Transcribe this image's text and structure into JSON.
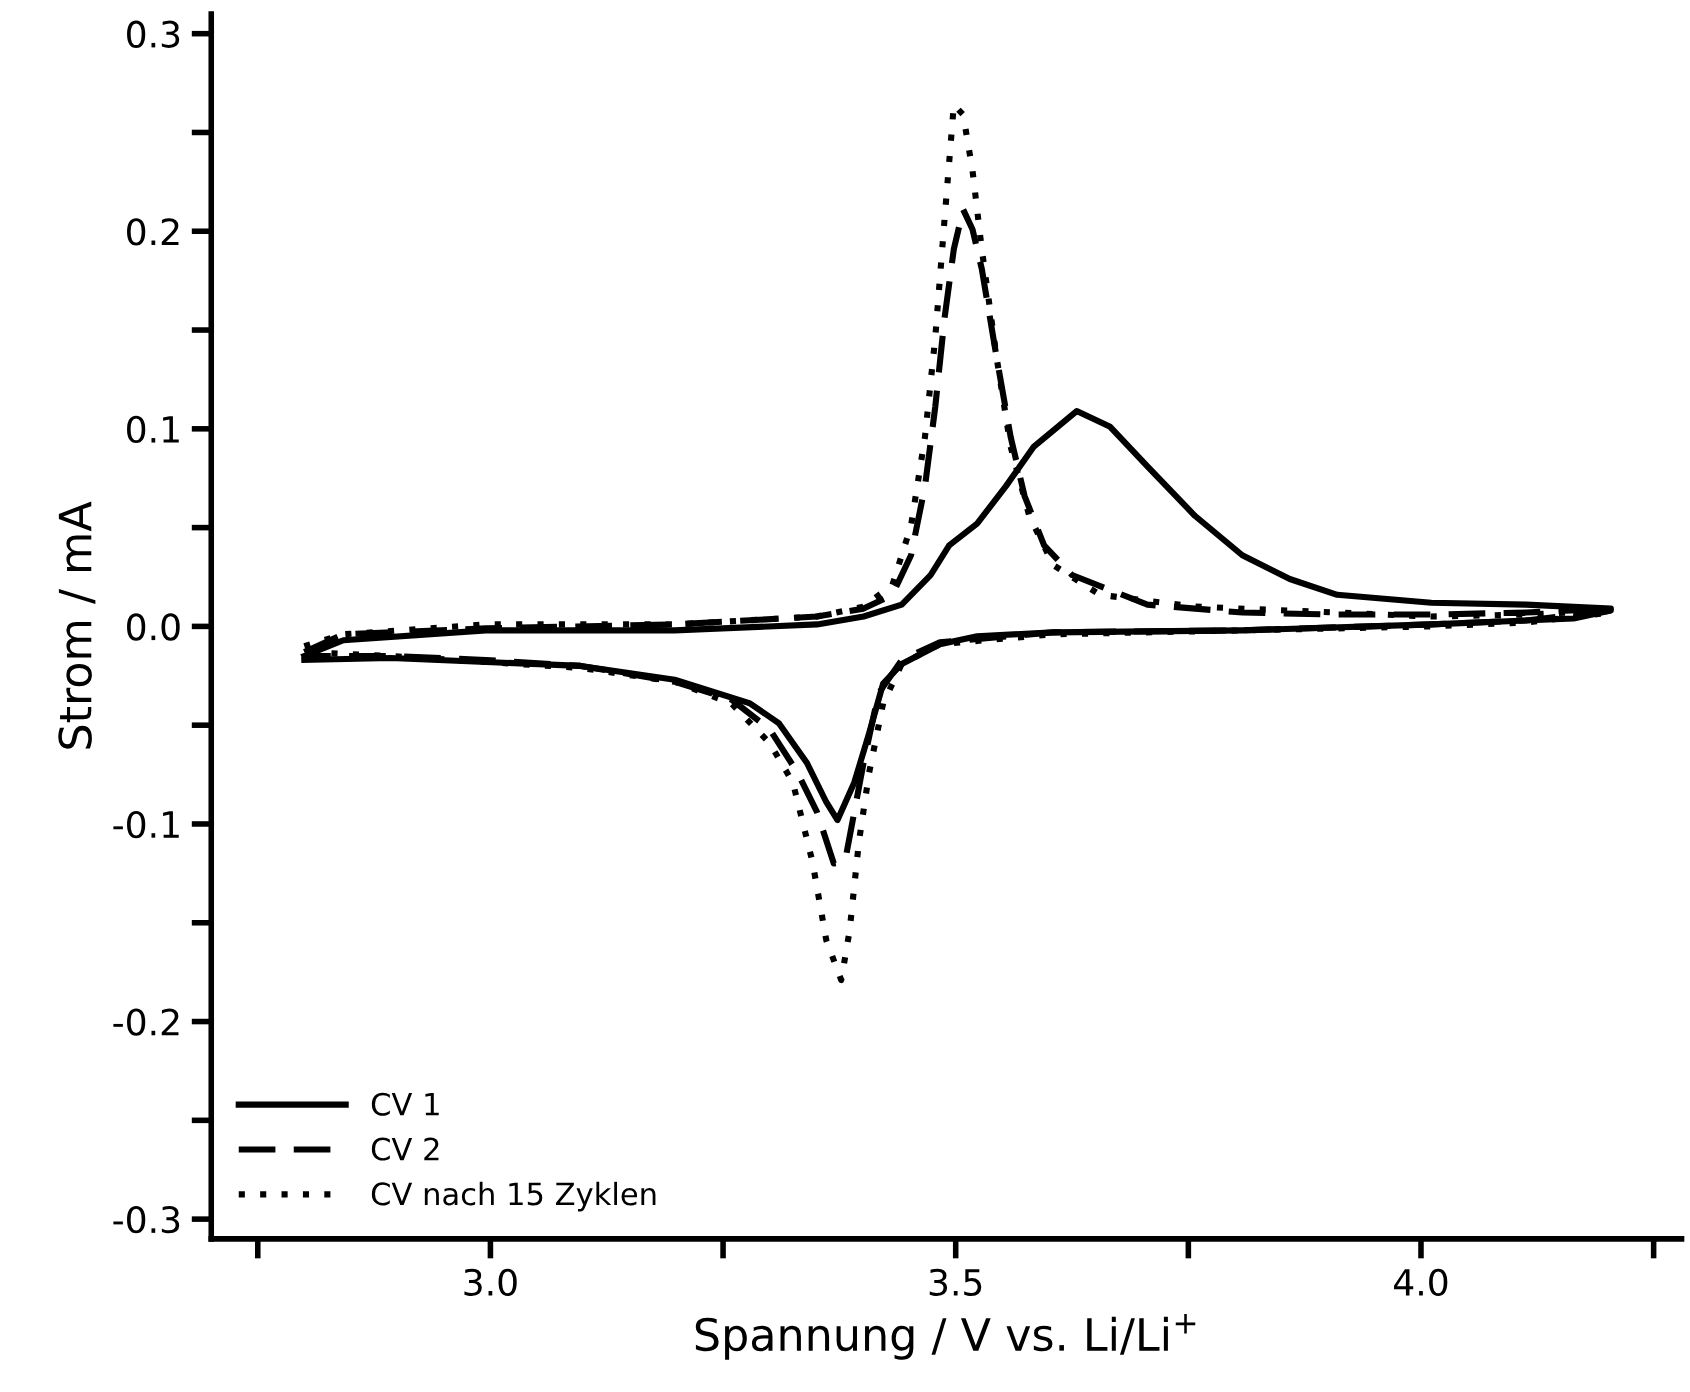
{
  "chart_data": {
    "type": "line",
    "xlabel": "Spannung / V vs. Li/Li$^{+}$",
    "ylabel": "Strom / mA",
    "xlim": [
      2.7,
      4.28
    ],
    "ylim": [
      -0.31,
      0.31
    ],
    "xticks": [
      {
        "value": 2.75,
        "label": null
      },
      {
        "value": 3.0,
        "label": "3.0"
      },
      {
        "value": 3.25,
        "label": null
      },
      {
        "value": 3.5,
        "label": "3.5"
      },
      {
        "value": 3.75,
        "label": null
      },
      {
        "value": 4.0,
        "label": "4.0"
      },
      {
        "value": 4.25,
        "label": null
      }
    ],
    "yticks": [
      {
        "value": -0.3,
        "label": "-0.3"
      },
      {
        "value": -0.25,
        "label": null
      },
      {
        "value": -0.2,
        "label": "-0.2"
      },
      {
        "value": -0.15,
        "label": null
      },
      {
        "value": -0.1,
        "label": "-0.1"
      },
      {
        "value": -0.05,
        "label": null
      },
      {
        "value": 0.0,
        "label": "0.0"
      },
      {
        "value": 0.05,
        "label": null
      },
      {
        "value": 0.1,
        "label": "0.1"
      },
      {
        "value": 0.15,
        "label": null
      },
      {
        "value": 0.2,
        "label": "0.2"
      },
      {
        "value": 0.25,
        "label": null
      },
      {
        "value": 0.3,
        "label": "0.3"
      }
    ],
    "grid": false,
    "legend": "bottom left",
    "marker": "none",
    "series": [
      {
        "name": "CV 1",
        "color": "#000000",
        "line_style": "solid",
        "x": [
          2.8,
          2.842,
          2.995,
          3.198,
          3.351,
          3.401,
          3.442,
          3.473,
          3.493,
          3.523,
          3.554,
          3.584,
          3.63,
          3.666,
          3.706,
          3.757,
          3.808,
          3.859,
          3.91,
          4.011,
          4.113,
          4.204,
          4.204,
          4.164,
          4.011,
          3.808,
          3.605,
          3.523,
          3.483,
          3.442,
          3.422,
          3.407,
          3.391,
          3.373,
          3.361,
          3.34,
          3.31,
          3.279,
          3.198,
          3.097,
          2.995,
          2.893,
          2.8
        ],
        "values": [
          -0.015,
          -0.007,
          -0.002,
          -0.002,
          0.001,
          0.005,
          0.011,
          0.026,
          0.041,
          0.052,
          0.071,
          0.091,
          0.109,
          0.101,
          0.081,
          0.056,
          0.036,
          0.024,
          0.016,
          0.012,
          0.011,
          0.009,
          0.008,
          0.004,
          0.001,
          -0.002,
          -0.003,
          -0.005,
          -0.009,
          -0.019,
          -0.029,
          -0.054,
          -0.079,
          -0.098,
          -0.089,
          -0.069,
          -0.049,
          -0.039,
          -0.027,
          -0.02,
          -0.018,
          -0.016,
          -0.017
        ]
      },
      {
        "name": "CV 2",
        "color": "#000000",
        "line_style": "dashed",
        "x": [
          2.8,
          2.842,
          2.995,
          3.198,
          3.351,
          3.401,
          3.432,
          3.452,
          3.467,
          3.478,
          3.488,
          3.498,
          3.508,
          3.518,
          3.528,
          3.544,
          3.559,
          3.574,
          3.595,
          3.625,
          3.706,
          3.808,
          3.91,
          4.011,
          4.113,
          4.204,
          4.204,
          4.113,
          4.011,
          3.808,
          3.605,
          3.483,
          3.442,
          3.417,
          3.401,
          3.391,
          3.381,
          3.369,
          3.351,
          3.33,
          3.3,
          3.259,
          3.198,
          3.097,
          2.995,
          2.893,
          2.8
        ],
        "values": [
          -0.013,
          -0.004,
          -0.001,
          0.001,
          0.005,
          0.009,
          0.016,
          0.036,
          0.071,
          0.111,
          0.156,
          0.191,
          0.211,
          0.201,
          0.181,
          0.136,
          0.096,
          0.066,
          0.041,
          0.026,
          0.011,
          0.007,
          0.006,
          0.006,
          0.007,
          0.009,
          0.008,
          0.003,
          0.001,
          -0.002,
          -0.003,
          -0.008,
          -0.017,
          -0.034,
          -0.069,
          -0.094,
          -0.119,
          -0.12,
          -0.094,
          -0.074,
          -0.052,
          -0.037,
          -0.028,
          -0.02,
          -0.017,
          -0.015,
          -0.015
        ]
      },
      {
        "name": "CV nach 15 Zyklen",
        "color": "#000000",
        "line_style": "dotted",
        "x": [
          2.8,
          2.842,
          2.995,
          3.198,
          3.351,
          3.401,
          3.432,
          3.452,
          3.467,
          3.478,
          3.488,
          3.498,
          3.508,
          3.518,
          3.528,
          3.544,
          3.559,
          3.579,
          3.605,
          3.655,
          3.757,
          3.91,
          4.011,
          4.113,
          4.204,
          4.204,
          4.113,
          4.011,
          3.808,
          3.605,
          3.483,
          3.442,
          3.422,
          3.407,
          3.396,
          3.386,
          3.377,
          3.361,
          3.346,
          3.325,
          3.3,
          3.259,
          3.198,
          3.097,
          2.995,
          2.893,
          2.8
        ],
        "values": [
          -0.01,
          -0.004,
          0.001,
          0.001,
          0.005,
          0.01,
          0.021,
          0.051,
          0.096,
          0.146,
          0.206,
          0.264,
          0.259,
          0.231,
          0.191,
          0.136,
          0.091,
          0.056,
          0.031,
          0.016,
          0.01,
          0.007,
          0.005,
          0.006,
          0.008,
          0.007,
          0.002,
          0.0,
          -0.002,
          -0.004,
          -0.009,
          -0.019,
          -0.039,
          -0.074,
          -0.109,
          -0.154,
          -0.179,
          -0.159,
          -0.119,
          -0.079,
          -0.059,
          -0.039,
          -0.028,
          -0.021,
          -0.018,
          -0.015,
          -0.013
        ]
      }
    ]
  }
}
